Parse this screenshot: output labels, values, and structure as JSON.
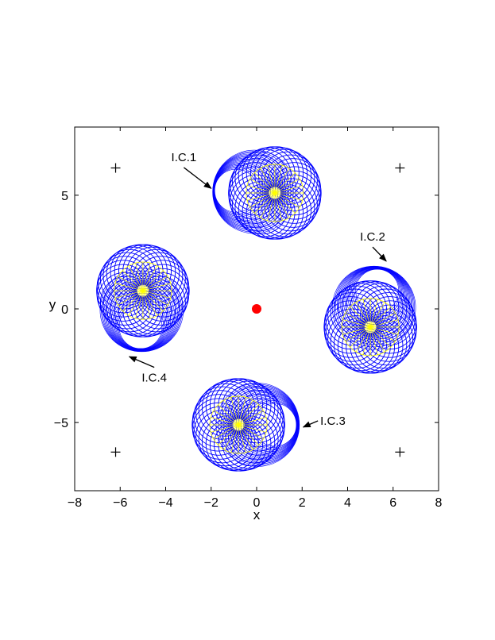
{
  "chart_data": {
    "type": "scatter",
    "title": "",
    "xlabel": "x",
    "ylabel": "y",
    "xlim": [
      -8,
      8
    ],
    "ylim": [
      -8,
      8
    ],
    "xticks": [
      -8,
      -6,
      -4,
      -2,
      0,
      2,
      4,
      6,
      8
    ],
    "yticks": [
      -5,
      0,
      5
    ],
    "xtick_labels": [
      "−8",
      "−6",
      "−4",
      "−2",
      "0",
      "2",
      "4",
      "6",
      "8"
    ],
    "ytick_labels": [
      "−5",
      "0",
      "5"
    ],
    "grid": false,
    "center_point": {
      "x": 0,
      "y": 0,
      "color": "#ff0000"
    },
    "corner_markers": [
      {
        "x": -6.2,
        "y": 6.2
      },
      {
        "x": 6.3,
        "y": 6.2
      },
      {
        "x": -6.2,
        "y": -6.3
      },
      {
        "x": 6.3,
        "y": -6.3
      }
    ],
    "orbit_clusters": [
      {
        "center": {
          "x": 0.8,
          "y": 5.1
        },
        "radius": 2.1,
        "start": {
          "x": -0.9,
          "y": 5.2
        }
      },
      {
        "center": {
          "x": 5.0,
          "y": -0.8
        },
        "radius": 2.1,
        "start": {
          "x": 5.3,
          "y": 0.8
        }
      },
      {
        "center": {
          "x": -0.8,
          "y": -5.1
        },
        "radius": 2.1,
        "start": {
          "x": 0.8,
          "y": -5.1
        }
      },
      {
        "center": {
          "x": -5.0,
          "y": 0.8
        },
        "radius": 2.1,
        "start": {
          "x": -5.1,
          "y": -0.8
        }
      }
    ],
    "annotations": [
      {
        "text": "I.C.1",
        "text_x": -3.2,
        "text_y": 6.5,
        "arrow_x": -2.0,
        "arrow_y": 5.3,
        "anchor": "middle"
      },
      {
        "text": "I.C.2",
        "text_x": 5.1,
        "text_y": 3.0,
        "arrow_x": 5.7,
        "arrow_y": 2.1,
        "anchor": "middle"
      },
      {
        "text": "I.C.3",
        "text_x": 2.8,
        "text_y": -5.1,
        "arrow_x": 2.05,
        "arrow_y": -5.2,
        "anchor": "start"
      },
      {
        "text": "I.C.4",
        "text_x": -4.5,
        "text_y": -3.2,
        "arrow_x": -5.6,
        "arrow_y": -2.1,
        "anchor": "middle"
      }
    ],
    "colors": {
      "orbit": "#0000ff",
      "inner": "#ffff00",
      "center_point": "#ff0000",
      "markers": "#000000"
    }
  }
}
